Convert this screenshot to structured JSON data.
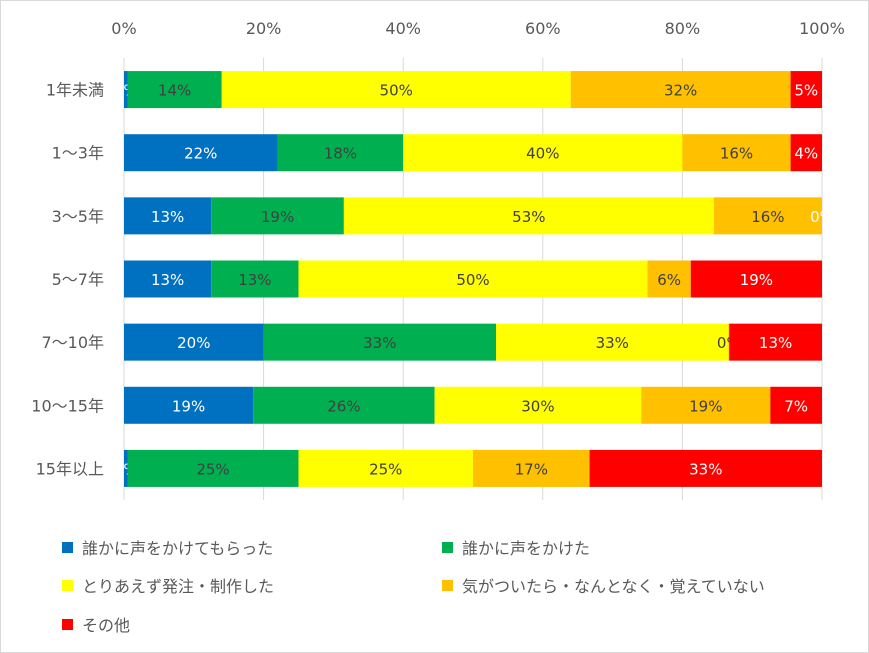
{
  "chart_data": {
    "type": "bar",
    "orientation": "horizontal",
    "stacked": "percent",
    "categories": [
      "1年未満",
      "1～3年",
      "3～5年",
      "5～7年",
      "7～10年",
      "10～15年",
      "15年以上"
    ],
    "series": [
      {
        "name": "誰かに声をかけてもらった",
        "color": "#0070c0",
        "values": [
          0.005,
          0.22,
          0.125,
          0.125,
          0.2,
          0.185,
          0.005
        ],
        "labels": [
          "0%",
          "22%",
          "13%",
          "13%",
          "20%",
          "19%",
          "0%"
        ]
      },
      {
        "name": "誰かに声をかけた",
        "color": "#00b050",
        "values": [
          0.135,
          0.18,
          0.19,
          0.125,
          0.333,
          0.26,
          0.245
        ],
        "labels": [
          "14%",
          "18%",
          "19%",
          "13%",
          "33%",
          "26%",
          "25%"
        ]
      },
      {
        "name": "とりあえず発注・制作した",
        "color": "#ffff00",
        "values": [
          0.5,
          0.4,
          0.53,
          0.5,
          0.333,
          0.296,
          0.25
        ],
        "labels": [
          "50%",
          "40%",
          "53%",
          "50%",
          "33%",
          "30%",
          "25%"
        ]
      },
      {
        "name": "気がついたら・なんとなく・覚えていない",
        "color": "#ffc000",
        "values": [
          0.315,
          0.155,
          0.155,
          0.062,
          0.001,
          0.185,
          0.167
        ],
        "labels": [
          "32%",
          "16%",
          "16%",
          "6%",
          "0%",
          "19%",
          "17%"
        ]
      },
      {
        "name": "その他",
        "color": "#ff0000",
        "values": [
          0.045,
          0.045,
          0.0,
          0.188,
          0.133,
          0.074,
          0.333
        ],
        "labels": [
          "5%",
          "4%",
          "0%",
          "19%",
          "13%",
          "7%",
          "33%"
        ]
      }
    ],
    "xticks": [
      "0%",
      "20%",
      "40%",
      "60%",
      "80%",
      "100%"
    ],
    "xlim": [
      0,
      1
    ],
    "grid": true,
    "legend_position": "bottom"
  }
}
